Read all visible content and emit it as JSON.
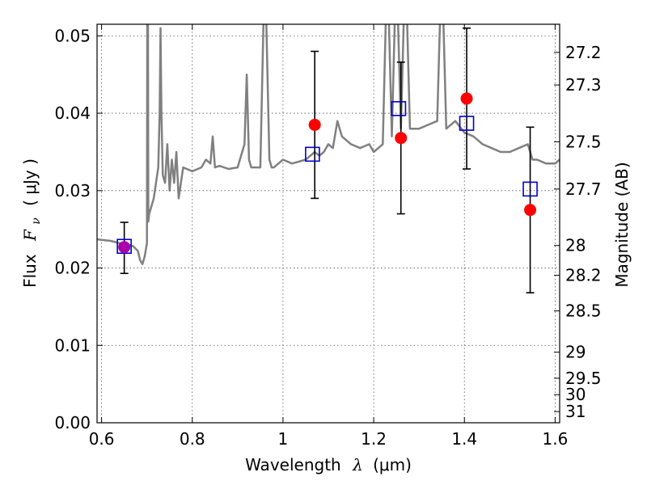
{
  "chart_data": {
    "type": "scatter",
    "title": "",
    "xlabel": "Wavelength  λ (μm)",
    "ylabel": "Flux  Fν  ( μJy )",
    "y2label": "Magnitude (AB)",
    "xlim": [
      0.59,
      1.61
    ],
    "ylim": [
      0.0,
      0.0515
    ],
    "grid": true,
    "x_ticks": [
      {
        "value": 0.6,
        "label": "0.6"
      },
      {
        "value": 0.8,
        "label": "0.8"
      },
      {
        "value": 1.0,
        "label": "1"
      },
      {
        "value": 1.2,
        "label": "1.2"
      },
      {
        "value": 1.4,
        "label": "1.4"
      },
      {
        "value": 1.6,
        "label": "1.6"
      }
    ],
    "y_ticks": [
      {
        "value": 0.0,
        "label": "0.00"
      },
      {
        "value": 0.01,
        "label": "0.01"
      },
      {
        "value": 0.02,
        "label": "0.02"
      },
      {
        "value": 0.03,
        "label": "0.03"
      },
      {
        "value": 0.04,
        "label": "0.04"
      },
      {
        "value": 0.05,
        "label": "0.05"
      }
    ],
    "y2_ticks": [
      {
        "mag": 27.2,
        "label": "27.2"
      },
      {
        "mag": 27.3,
        "label": "27.3"
      },
      {
        "mag": 27.5,
        "label": "27.5"
      },
      {
        "mag": 27.7,
        "label": "27.7"
      },
      {
        "mag": 28.0,
        "label": "28"
      },
      {
        "mag": 28.2,
        "label": "28.2"
      },
      {
        "mag": 28.5,
        "label": "28.5"
      },
      {
        "mag": 29.0,
        "label": "29"
      },
      {
        "mag": 29.5,
        "label": "29.5"
      },
      {
        "mag": 30.0,
        "label": "30"
      },
      {
        "mag": 31.0,
        "label": "31"
      }
    ],
    "colors": {
      "model": "#808080",
      "observed": "#ff0000",
      "model_band": "#0000cc",
      "errorbar": "#000000",
      "overlap": "#aa00aa",
      "grid": "#555555"
    },
    "model_spectrum": {
      "x": [
        0.59,
        0.62,
        0.64,
        0.66,
        0.67,
        0.68,
        0.685,
        0.69,
        0.695,
        0.7,
        0.701,
        0.702,
        0.703,
        0.705,
        0.71,
        0.715,
        0.72,
        0.725,
        0.728,
        0.73,
        0.732,
        0.735,
        0.74,
        0.745,
        0.75,
        0.755,
        0.76,
        0.765,
        0.77,
        0.78,
        0.8,
        0.82,
        0.83,
        0.84,
        0.845,
        0.85,
        0.86,
        0.88,
        0.9,
        0.915,
        0.92,
        0.925,
        0.93,
        0.95,
        0.96,
        0.97,
        0.975,
        0.98,
        0.99,
        1.0,
        1.02,
        1.05,
        1.07,
        1.08,
        1.09,
        1.1,
        1.11,
        1.12,
        1.13,
        1.15,
        1.17,
        1.19,
        1.2,
        1.22,
        1.23,
        1.24,
        1.25,
        1.26,
        1.27,
        1.28,
        1.3,
        1.32,
        1.34,
        1.35,
        1.36,
        1.38,
        1.4,
        1.42,
        1.44,
        1.46,
        1.48,
        1.5,
        1.52,
        1.54,
        1.55,
        1.56,
        1.58,
        1.6,
        1.61
      ],
      "y": [
        0.0237,
        0.0235,
        0.0232,
        0.023,
        0.0228,
        0.0222,
        0.021,
        0.0205,
        0.0215,
        0.0232,
        0.06,
        0.06,
        0.026,
        0.027,
        0.028,
        0.029,
        0.031,
        0.033,
        0.04,
        0.051,
        0.04,
        0.032,
        0.031,
        0.036,
        0.03,
        0.034,
        0.031,
        0.035,
        0.029,
        0.033,
        0.0325,
        0.033,
        0.034,
        0.0335,
        0.037,
        0.033,
        0.0332,
        0.0328,
        0.033,
        0.036,
        0.045,
        0.034,
        0.033,
        0.033,
        0.06,
        0.034,
        0.033,
        0.033,
        0.0335,
        0.034,
        0.0335,
        0.034,
        0.035,
        0.0345,
        0.035,
        0.036,
        0.0355,
        0.039,
        0.037,
        0.036,
        0.0355,
        0.036,
        0.035,
        0.036,
        0.06,
        0.037,
        0.06,
        0.038,
        0.06,
        0.038,
        0.038,
        0.0385,
        0.039,
        0.06,
        0.038,
        0.039,
        0.0375,
        0.037,
        0.036,
        0.0355,
        0.035,
        0.035,
        0.0355,
        0.036,
        0.034,
        0.034,
        0.0335,
        0.0335,
        0.034
      ]
    },
    "observed": [
      {
        "x": 0.65,
        "y": 0.0227,
        "err_lo": 0.0034,
        "err_hi": 0.0032
      },
      {
        "x": 1.07,
        "y": 0.0385,
        "err_lo": 0.0095,
        "err_hi": 0.0095
      },
      {
        "x": 1.26,
        "y": 0.0368,
        "err_lo": 0.0098,
        "err_hi": 0.0098
      },
      {
        "x": 1.405,
        "y": 0.0419,
        "err_lo": 0.0091,
        "err_hi": 0.0091
      },
      {
        "x": 1.545,
        "y": 0.0275,
        "err_lo": 0.0107,
        "err_hi": 0.0107
      }
    ],
    "model_bands": [
      {
        "x": 0.65,
        "y": 0.0228
      },
      {
        "x": 1.065,
        "y": 0.0347
      },
      {
        "x": 1.255,
        "y": 0.0406
      },
      {
        "x": 1.405,
        "y": 0.0387
      },
      {
        "x": 1.545,
        "y": 0.0302
      }
    ]
  },
  "labels": {
    "xlabel_prefix": "Wavelength",
    "xlabel_lambda": "λ",
    "xlabel_unit": "(μm)",
    "ylabel_prefix": "Flux",
    "ylabel_F": "F",
    "ylabel_sub": "ν",
    "ylabel_unit": "( μJy )",
    "y2label": "Magnitude (AB)"
  }
}
